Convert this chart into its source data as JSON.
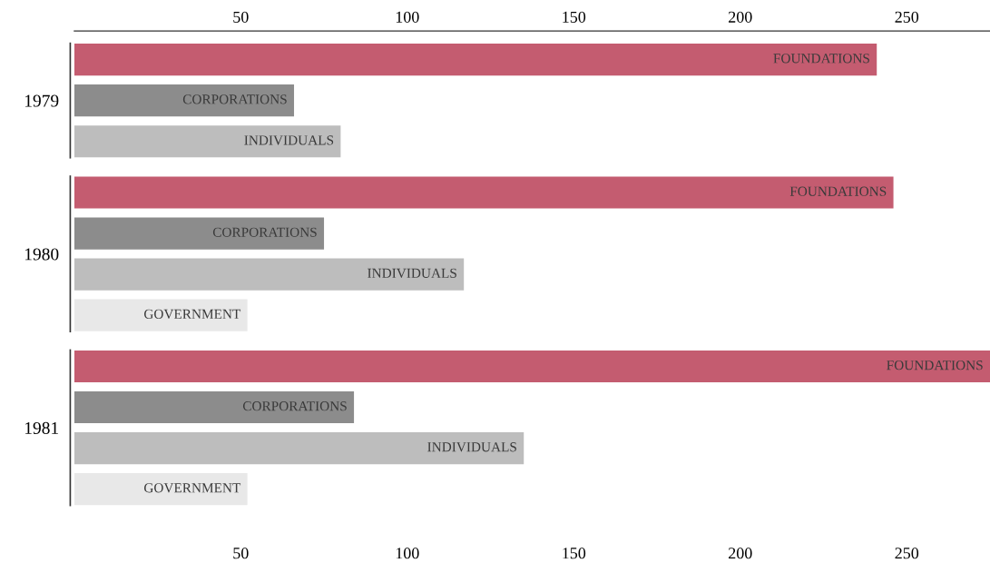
{
  "chart_data": {
    "type": "bar",
    "orientation": "horizontal",
    "categories": [
      "1979",
      "1980",
      "1981"
    ],
    "series": [
      {
        "name": "FOUNDATIONS",
        "color": "#c45c70",
        "values": [
          241,
          246,
          275
        ]
      },
      {
        "name": "CORPORATIONS",
        "color": "#8c8c8c",
        "values": [
          66,
          75,
          84
        ]
      },
      {
        "name": "INDIVIDUALS",
        "color": "#bdbdbd",
        "values": [
          80,
          117,
          135
        ]
      },
      {
        "name": "GOVERNMENT",
        "color": "#e8e8e8",
        "values": [
          null,
          52,
          52
        ]
      }
    ],
    "xlim": [
      0,
      275
    ],
    "xticks": [
      50,
      100,
      150,
      200,
      250
    ],
    "x2lim": [
      0,
      275
    ],
    "x2ticks": [
      50,
      100,
      150,
      200,
      250
    ],
    "grid": false,
    "legend": false
  }
}
